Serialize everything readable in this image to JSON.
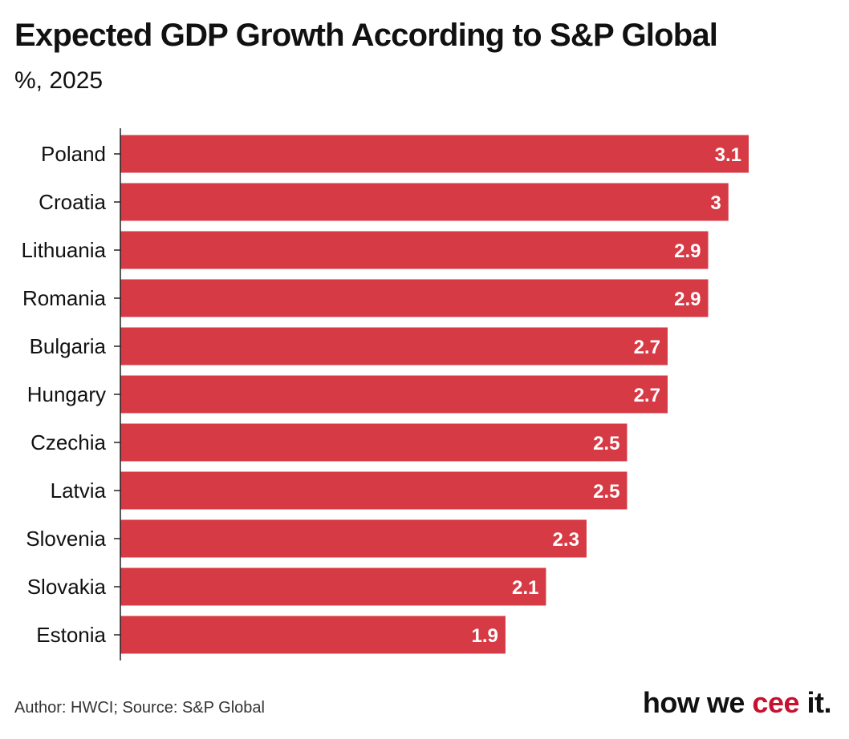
{
  "title": "Expected GDP Growth According to S&P Global",
  "subtitle": "%, 2025",
  "footer": {
    "source": "Author: HWCI; Source: S&P Global"
  },
  "brand": {
    "prefix": "how we ",
    "accent": "cee",
    "suffix": " it."
  },
  "colors": {
    "bar": "#d63a44",
    "value_label": "#ffffff",
    "brand_accent": "#c8102e"
  },
  "chart_data": {
    "type": "bar",
    "orientation": "horizontal",
    "categories": [
      "Poland",
      "Croatia",
      "Lithuania",
      "Romania",
      "Bulgaria",
      "Hungary",
      "Czechia",
      "Latvia",
      "Slovenia",
      "Slovakia",
      "Estonia"
    ],
    "values": [
      3.1,
      3,
      2.9,
      2.9,
      2.7,
      2.7,
      2.5,
      2.5,
      2.3,
      2.1,
      1.9
    ],
    "title": "Expected GDP Growth According to S&P Global",
    "subtitle": "%, 2025",
    "xlim": [
      0,
      3.1
    ],
    "grid": false,
    "data_labels": true
  }
}
